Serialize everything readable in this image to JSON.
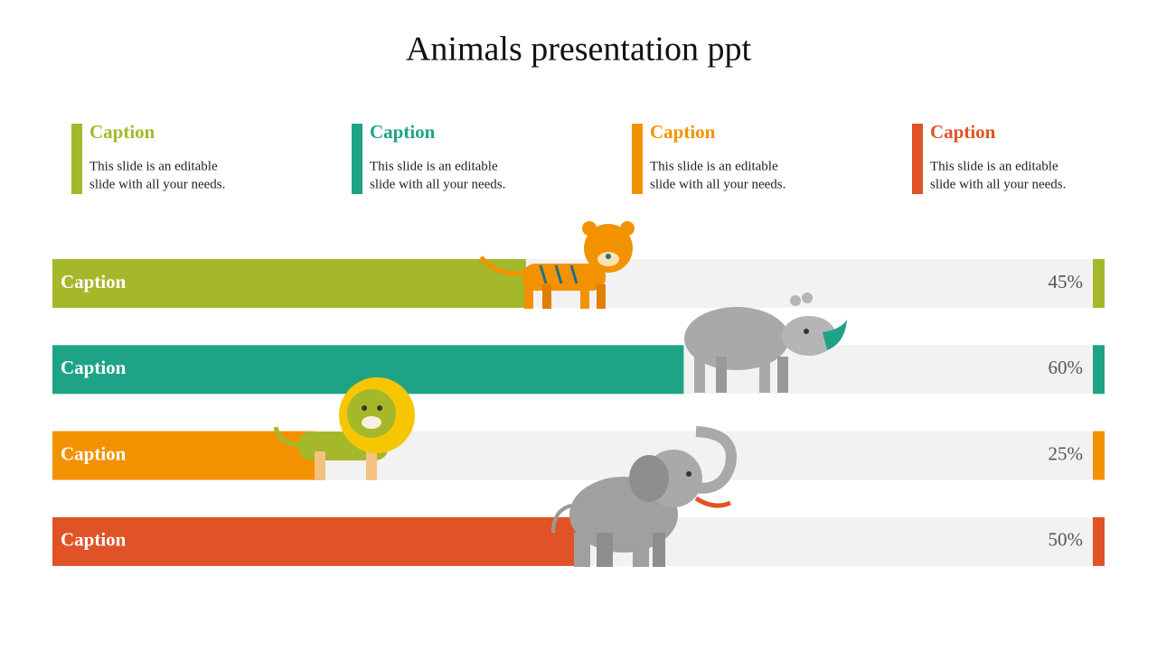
{
  "header": {
    "title": "Animals presentation ppt"
  },
  "captions": [
    {
      "title": "Caption",
      "text": [
        "This slide is an editable",
        "slide with all your needs."
      ],
      "color": "#a5b82a"
    },
    {
      "title": "Caption",
      "text": [
        "This slide is an editable",
        "slide with all your needs."
      ],
      "color": "#1fa386"
    },
    {
      "title": "Caption",
      "text": [
        "This slide is an editable",
        "slide with all your needs."
      ],
      "color": "#f39200"
    },
    {
      "title": "Caption",
      "text": [
        "This slide is an editable",
        "slide with all your needs."
      ],
      "color": "#e05326"
    }
  ],
  "chart_data": {
    "type": "hbar",
    "categories": [
      "Caption",
      "Caption",
      "Caption",
      "Caption"
    ],
    "values": [
      45,
      60,
      25,
      50
    ],
    "value_labels": [
      "45%",
      "60%",
      "25%",
      "50%"
    ],
    "colors": [
      "#a5b82a",
      "#1fa386",
      "#f39200",
      "#e05326"
    ],
    "xlim": [
      0,
      100
    ]
  }
}
